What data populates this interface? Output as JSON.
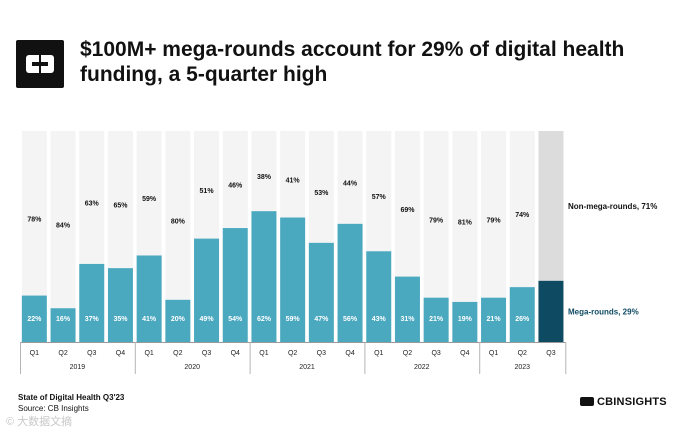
{
  "header": {
    "title": "$100M+ mega-rounds account for 29% of digital health funding, a 5-quarter high"
  },
  "footer": {
    "report": "State of Digital Health Q3'23",
    "source": "Source: CB Insights",
    "brand": "CBINSIGHTS",
    "watermark": "© 大数据文摘"
  },
  "colors": {
    "mega": "#4aa8bf",
    "mega_highlight": "#0f4a63",
    "non_mega": "#f4f4f4",
    "non_mega_highlight": "#dcdcdc",
    "label_mega": "#ffffff",
    "label_non_mega": "#111111"
  },
  "chart_data": {
    "type": "bar",
    "stacked": true,
    "title": "$100M+ mega-rounds account for 29% of digital health funding, a 5-quarter high",
    "categories": [
      "Q1",
      "Q2",
      "Q3",
      "Q4",
      "Q1",
      "Q2",
      "Q3",
      "Q4",
      "Q1",
      "Q2",
      "Q3",
      "Q4",
      "Q1",
      "Q2",
      "Q3",
      "Q4",
      "Q1",
      "Q2",
      "Q3"
    ],
    "groups": [
      {
        "label": "2019",
        "count": 4
      },
      {
        "label": "2020",
        "count": 4
      },
      {
        "label": "2021",
        "count": 4
      },
      {
        "label": "2022",
        "count": 4
      },
      {
        "label": "2023",
        "count": 3
      }
    ],
    "series": [
      {
        "name": "Mega-rounds",
        "values": [
          22,
          16,
          37,
          35,
          41,
          20,
          49,
          54,
          62,
          59,
          47,
          56,
          43,
          31,
          21,
          19,
          21,
          26,
          29
        ],
        "labels": [
          "22%",
          "16%",
          "37%",
          "35%",
          "41%",
          "20%",
          "49%",
          "54%",
          "62%",
          "59%",
          "47%",
          "56%",
          "43%",
          "31%",
          "21%",
          "19%",
          "21%",
          "26%",
          ""
        ]
      },
      {
        "name": "Non-mega-rounds",
        "values": [
          78,
          84,
          63,
          65,
          59,
          80,
          51,
          46,
          38,
          41,
          53,
          44,
          57,
          69,
          79,
          81,
          79,
          74,
          71
        ],
        "labels": [
          "78%",
          "84%",
          "63%",
          "65%",
          "59%",
          "80%",
          "51%",
          "46%",
          "38%",
          "41%",
          "53%",
          "44%",
          "57%",
          "69%",
          "79%",
          "81%",
          "79%",
          "74%",
          ""
        ]
      }
    ],
    "legend": [
      {
        "series": "Non-mega-rounds",
        "text": "Non-mega-rounds, 71%"
      },
      {
        "series": "Mega-rounds",
        "text": "Mega-rounds, 29%"
      }
    ],
    "highlight_index": 18,
    "ylim": [
      0,
      100
    ],
    "xlabel": "",
    "ylabel": ""
  }
}
